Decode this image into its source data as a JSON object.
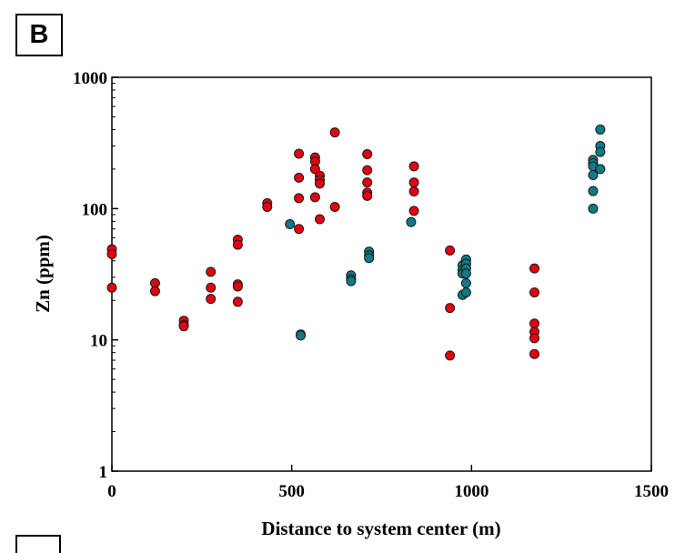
{
  "panel_label": "B",
  "chart_data": {
    "type": "scatter",
    "xlabel": "Distance to system center (m)",
    "ylabel": "Zn (ppm)",
    "xlim": [
      0,
      1500
    ],
    "ylim": [
      1,
      1000
    ],
    "y_scale": "log",
    "x_ticks": [
      0,
      500,
      1000,
      1500
    ],
    "y_ticks": [
      1,
      10,
      100,
      1000
    ],
    "x_tick_labels": [
      "0",
      "500",
      "1000",
      "1500"
    ],
    "y_tick_labels": [
      "1",
      "10",
      "100",
      "1000"
    ],
    "grid": false,
    "legend": false,
    "series": [
      {
        "color": "#e3000f",
        "points": [
          [
            0,
            49
          ],
          [
            0,
            45
          ],
          [
            0,
            25
          ],
          [
            120,
            27
          ],
          [
            120,
            23.5
          ],
          [
            200,
            14
          ],
          [
            200,
            13
          ],
          [
            200,
            12.7
          ],
          [
            275,
            33
          ],
          [
            275,
            25
          ],
          [
            275,
            20.5
          ],
          [
            350,
            58
          ],
          [
            350,
            53
          ],
          [
            350,
            26.5
          ],
          [
            350,
            25.5
          ],
          [
            350,
            19.5
          ],
          [
            432,
            110
          ],
          [
            432,
            103
          ],
          [
            520,
            262
          ],
          [
            520,
            172
          ],
          [
            520,
            120
          ],
          [
            520,
            70
          ],
          [
            565,
            245
          ],
          [
            565,
            228
          ],
          [
            565,
            200
          ],
          [
            565,
            122
          ],
          [
            578,
            178
          ],
          [
            578,
            165
          ],
          [
            578,
            155
          ],
          [
            578,
            83
          ],
          [
            620,
            380
          ],
          [
            620,
            103
          ],
          [
            710,
            260
          ],
          [
            710,
            196
          ],
          [
            710,
            158
          ],
          [
            710,
            132
          ],
          [
            710,
            125
          ],
          [
            840,
            210
          ],
          [
            840,
            158
          ],
          [
            840,
            135
          ],
          [
            840,
            96
          ],
          [
            940,
            48
          ],
          [
            940,
            17.5
          ],
          [
            940,
            7.6
          ],
          [
            1175,
            35
          ],
          [
            1175,
            23
          ],
          [
            1175,
            13.3
          ],
          [
            1175,
            11.5
          ],
          [
            1175,
            10.3
          ],
          [
            1175,
            7.8
          ]
        ]
      },
      {
        "color": "#0f7a86",
        "points": [
          [
            495,
            76
          ],
          [
            525,
            11
          ],
          [
            525,
            10.8
          ],
          [
            665,
            31
          ],
          [
            665,
            29
          ],
          [
            665,
            28
          ],
          [
            715,
            47
          ],
          [
            715,
            44
          ],
          [
            715,
            42
          ],
          [
            832,
            79
          ],
          [
            975,
            37
          ],
          [
            975,
            34
          ],
          [
            975,
            32
          ],
          [
            975,
            22
          ],
          [
            985,
            41
          ],
          [
            985,
            38
          ],
          [
            985,
            35
          ],
          [
            985,
            32
          ],
          [
            985,
            27
          ],
          [
            985,
            23
          ],
          [
            1338,
            235
          ],
          [
            1338,
            222
          ],
          [
            1338,
            210
          ],
          [
            1338,
            180
          ],
          [
            1338,
            136
          ],
          [
            1338,
            100
          ],
          [
            1358,
            400
          ],
          [
            1358,
            300
          ],
          [
            1358,
            270
          ],
          [
            1358,
            200
          ]
        ]
      }
    ]
  }
}
